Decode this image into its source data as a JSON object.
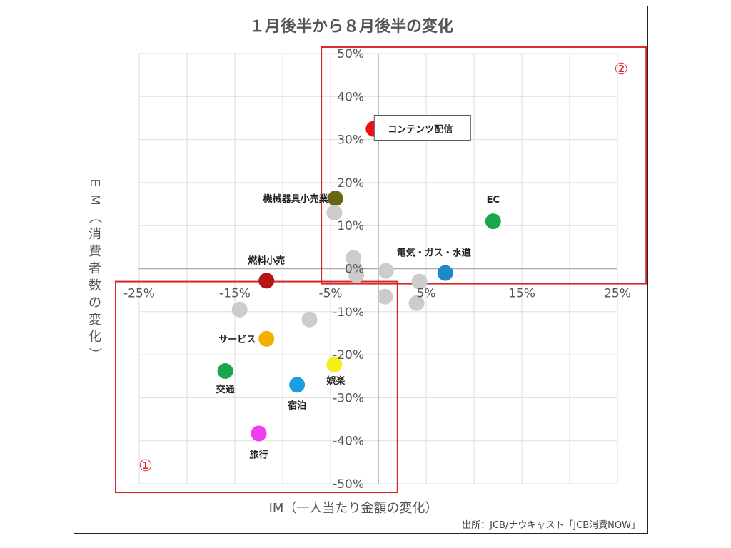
{
  "chart_data": {
    "type": "scatter",
    "title": "１月後半から８月後半の変化",
    "xlabel": "IM（一人当たり金額の変化）",
    "ylabel": "EM（消費者数の変化）",
    "xlim": [
      -25,
      25
    ],
    "ylim": [
      -50,
      50
    ],
    "x_ticks": [
      "-25%",
      "-15%",
      "-5%",
      "5%",
      "15%",
      "25%"
    ],
    "y_ticks": [
      "50%",
      "40%",
      "30%",
      "20%",
      "10%",
      "0%",
      "-10%",
      "-20%",
      "-30%",
      "-40%",
      "-50%"
    ],
    "grid": true,
    "points": [
      {
        "label": "コンテンツ配信",
        "x": -0.5,
        "y": 32.5,
        "color": "#ee1111",
        "boxed": true
      },
      {
        "label": "機械器具小売業",
        "x": -4.5,
        "y": 16.3,
        "color": "#6b6512"
      },
      {
        "label": "EC",
        "x": 12,
        "y": 11,
        "color": "#1aa64a"
      },
      {
        "label": "電気・ガス・水道",
        "x": 7,
        "y": -1,
        "color": "#1e88c8"
      },
      {
        "label": "燃料小売",
        "x": -11.7,
        "y": -2.8,
        "color": "#b81414"
      },
      {
        "label": "サービス",
        "x": -11.7,
        "y": -16.3,
        "color": "#f2b000"
      },
      {
        "label": "交通",
        "x": -16,
        "y": -23.8,
        "color": "#1aa64a"
      },
      {
        "label": "宿泊",
        "x": -8.5,
        "y": -27,
        "color": "#1aa0e0"
      },
      {
        "label": "娯楽",
        "x": -4.6,
        "y": -22.3,
        "color": "#f5ee1a"
      },
      {
        "label": "旅行",
        "x": -12.5,
        "y": -38.3,
        "color": "#f23cf0"
      },
      {
        "label": "",
        "x": -4.6,
        "y": 13,
        "color": "#cccccc"
      },
      {
        "label": "",
        "x": -2.6,
        "y": 2.5,
        "color": "#cccccc"
      },
      {
        "label": "",
        "x": -2.5,
        "y": 0,
        "color": "#cccccc"
      },
      {
        "label": "",
        "x": -2.3,
        "y": -1.5,
        "color": "#cccccc"
      },
      {
        "label": "",
        "x": 0.8,
        "y": -0.5,
        "color": "#cccccc"
      },
      {
        "label": "",
        "x": 4.3,
        "y": -3,
        "color": "#cccccc"
      },
      {
        "label": "",
        "x": 0.7,
        "y": -6.5,
        "color": "#cccccc"
      },
      {
        "label": "",
        "x": 4,
        "y": -8,
        "color": "#cccccc"
      },
      {
        "label": "",
        "x": -14.5,
        "y": -9.5,
        "color": "#cccccc"
      },
      {
        "label": "",
        "x": -7.2,
        "y": -11.8,
        "color": "#cccccc"
      }
    ],
    "zones": [
      {
        "label": "①",
        "x": [
          -25,
          2
        ],
        "y": [
          -52,
          -3
        ],
        "color": "#d62728"
      },
      {
        "label": "②",
        "x": [
          -3.5,
          28
        ],
        "y": [
          -3.5,
          51.5
        ],
        "color": "#d62728"
      }
    ],
    "source": "出所：JCB/ナウキャスト「JCB消費NOW」"
  }
}
